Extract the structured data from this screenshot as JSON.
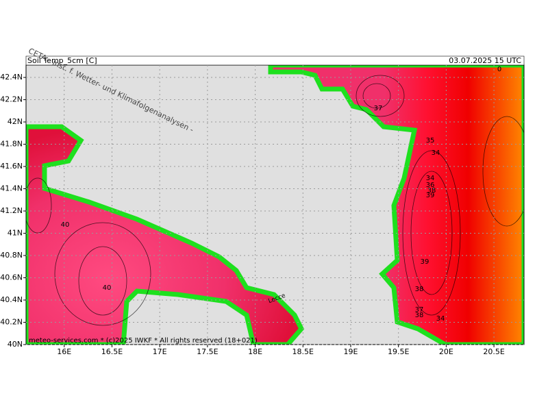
{
  "header": {
    "title": "Soil Temp_5cm [C]",
    "time": "03.07.2025 15 UTC"
  },
  "watermark": "CETA - Inst. f. Wetter- und Klimafolgenanalysen -",
  "footer": "meteo-services.com * (c)2025 IWKF * All rights reserved (18+021)",
  "map": {
    "lonlim": [
      15.6,
      20.815
    ],
    "latlim": [
      40,
      42.511
    ],
    "lonticks": [
      {
        "value": 16,
        "label": "16E"
      },
      {
        "value": 16.5,
        "label": "16.5E"
      },
      {
        "value": 17,
        "label": "17E"
      },
      {
        "value": 17.5,
        "label": "17.5E"
      },
      {
        "value": 18,
        "label": "18E"
      },
      {
        "value": 18.5,
        "label": "18.5E"
      },
      {
        "value": 19,
        "label": "19E"
      },
      {
        "value": 19.5,
        "label": "19.5E"
      },
      {
        "value": 20,
        "label": "20E"
      },
      {
        "value": 20.5,
        "label": "20.5E"
      }
    ],
    "latticks": [
      {
        "value": 40,
        "label": "40N"
      },
      {
        "value": 40.2,
        "label": "40.2N"
      },
      {
        "value": 40.4,
        "label": "40.4N"
      },
      {
        "value": 40.6,
        "label": "40.6N"
      },
      {
        "value": 40.8,
        "label": "40.8N"
      },
      {
        "value": 41,
        "label": "41N"
      },
      {
        "value": 41.2,
        "label": "41.2N"
      },
      {
        "value": 41.4,
        "label": "41.4N"
      },
      {
        "value": 41.6,
        "label": "41.6N"
      },
      {
        "value": 41.8,
        "label": "41.8N"
      },
      {
        "value": 42,
        "label": "42N"
      },
      {
        "value": 42.2,
        "label": "42.2N"
      },
      {
        "value": 42.4,
        "label": "42.4N"
      }
    ],
    "place_labels": [
      "Lecce"
    ],
    "contour_labels": [
      37,
      35,
      34,
      34,
      36,
      38,
      39,
      39,
      38,
      37,
      38,
      34,
      40,
      40,
      0
    ]
  }
}
